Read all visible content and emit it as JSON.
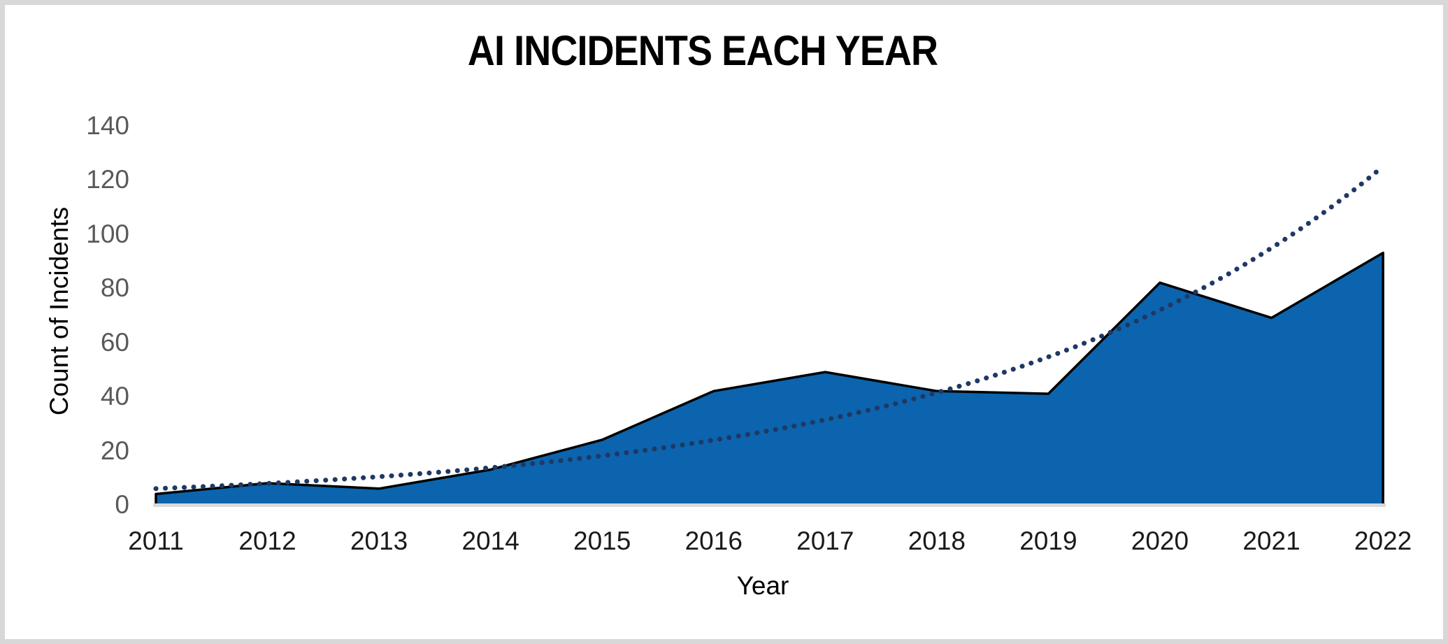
{
  "chart": {
    "title": "AI INCIDENTS EACH YEAR",
    "x_axis_title": "Year",
    "y_axis_title": "Count of Incidents",
    "colors": {
      "area_fill": "#0b64ad",
      "area_outline": "#000000",
      "trendline_dots": "#1f3864",
      "y_tick_labels": "#595959",
      "x_tick_labels": "#1a1a1a",
      "axis_line": "#d9d9d9",
      "frame_border": "#d8d8d8",
      "background": "#ffffff",
      "title_text": "#000000"
    }
  },
  "chart_data": {
    "type": "area",
    "title": "AI INCIDENTS EACH YEAR",
    "xlabel": "Year",
    "ylabel": "Count of Incidents",
    "categories": [
      "2011",
      "2012",
      "2013",
      "2014",
      "2015",
      "2016",
      "2017",
      "2018",
      "2019",
      "2020",
      "2021",
      "2022"
    ],
    "series": [
      {
        "name": "Count of Incidents",
        "type": "area",
        "values": [
          4,
          8,
          6,
          13,
          24,
          42,
          49,
          42,
          41,
          82,
          69,
          93
        ]
      },
      {
        "name": "Exponential trendline",
        "type": "dotted-line",
        "values": [
          6,
          7.9,
          10.4,
          13.7,
          18.1,
          23.9,
          31.4,
          41.4,
          54.6,
          71.9,
          94.8,
          124.9
        ]
      }
    ],
    "ylim": [
      0,
      140
    ],
    "yticks": [
      0,
      20,
      40,
      60,
      80,
      100,
      120,
      140
    ],
    "grid": false,
    "legend": "none"
  }
}
